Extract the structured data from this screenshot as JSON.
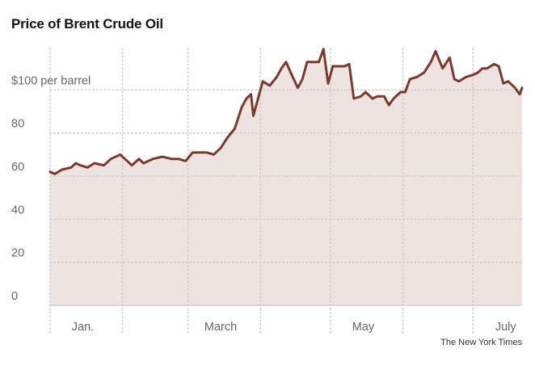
{
  "chart_data": {
    "type": "area",
    "title": "Price of Brent Crude Oil",
    "credit": "The New York Times",
    "xlabel": "",
    "ylabel": "",
    "ylim": [
      0,
      120
    ],
    "y_ticks": [
      {
        "value": 0,
        "label": "0"
      },
      {
        "value": 20,
        "label": "20"
      },
      {
        "value": 40,
        "label": "40"
      },
      {
        "value": 60,
        "label": "60"
      },
      {
        "value": 80,
        "label": "80"
      },
      {
        "value": 100,
        "label": "$100 per barrel"
      }
    ],
    "x_labels": [
      {
        "date": "2022-01-15",
        "label": "Jan."
      },
      {
        "date": "2022-03-15",
        "label": "March"
      },
      {
        "date": "2022-05-15",
        "label": "May"
      },
      {
        "date": "2022-07-15",
        "label": "July"
      }
    ],
    "x_gridlines": [
      "2022-01-01",
      "2022-02-01",
      "2022-03-01",
      "2022-04-01",
      "2022-05-01",
      "2022-06-01",
      "2022-07-01"
    ],
    "xlim": [
      "2022-01-01",
      "2022-07-22"
    ],
    "colors": {
      "line": "#7b3a2c",
      "fill": "#ede3e0",
      "grid": "#cfcfcf",
      "text": "#666666"
    },
    "series": [
      {
        "name": "",
        "points": [
          [
            "2022-01-01",
            62
          ],
          [
            "2022-01-03",
            61
          ],
          [
            "2022-01-06",
            63
          ],
          [
            "2022-01-10",
            64
          ],
          [
            "2022-01-12",
            66
          ],
          [
            "2022-01-14",
            65
          ],
          [
            "2022-01-17",
            64
          ],
          [
            "2022-01-20",
            66
          ],
          [
            "2022-01-24",
            65
          ],
          [
            "2022-01-27",
            68
          ],
          [
            "2022-01-31",
            70
          ],
          [
            "2022-02-03",
            67
          ],
          [
            "2022-02-05",
            65
          ],
          [
            "2022-02-08",
            68
          ],
          [
            "2022-02-10",
            66
          ],
          [
            "2022-02-14",
            68
          ],
          [
            "2022-02-18",
            69
          ],
          [
            "2022-02-22",
            68
          ],
          [
            "2022-02-25",
            68
          ],
          [
            "2022-02-28",
            67
          ],
          [
            "2022-03-03",
            71
          ],
          [
            "2022-03-06",
            71
          ],
          [
            "2022-03-09",
            71
          ],
          [
            "2022-03-12",
            70
          ],
          [
            "2022-03-15",
            73
          ],
          [
            "2022-03-18",
            78
          ],
          [
            "2022-03-21",
            82
          ],
          [
            "2022-03-24",
            92
          ],
          [
            "2022-03-26",
            96
          ],
          [
            "2022-03-28",
            98
          ],
          [
            "2022-03-29",
            88
          ],
          [
            "2022-03-31",
            96
          ],
          [
            "2022-04-02",
            104
          ],
          [
            "2022-04-05",
            102
          ],
          [
            "2022-04-08",
            106
          ],
          [
            "2022-04-10",
            110
          ],
          [
            "2022-04-12",
            113
          ],
          [
            "2022-04-14",
            108
          ],
          [
            "2022-04-17",
            101
          ],
          [
            "2022-04-19",
            105
          ],
          [
            "2022-04-21",
            113
          ],
          [
            "2022-04-24",
            113
          ],
          [
            "2022-04-26",
            113
          ],
          [
            "2022-04-28",
            119
          ],
          [
            "2022-04-30",
            103
          ],
          [
            "2022-05-02",
            111
          ],
          [
            "2022-05-04",
            111
          ],
          [
            "2022-05-07",
            111
          ],
          [
            "2022-05-09",
            112
          ],
          [
            "2022-05-11",
            96
          ],
          [
            "2022-05-14",
            97
          ],
          [
            "2022-05-16",
            99
          ],
          [
            "2022-05-19",
            96
          ],
          [
            "2022-05-21",
            97
          ],
          [
            "2022-05-24",
            97
          ],
          [
            "2022-05-26",
            93
          ],
          [
            "2022-05-28",
            96
          ],
          [
            "2022-05-31",
            99
          ],
          [
            "2022-06-02",
            99
          ],
          [
            "2022-06-04",
            105
          ],
          [
            "2022-06-07",
            106
          ],
          [
            "2022-06-10",
            108
          ],
          [
            "2022-06-13",
            113
          ],
          [
            "2022-06-15",
            118
          ],
          [
            "2022-06-18",
            110
          ],
          [
            "2022-06-21",
            115
          ],
          [
            "2022-06-23",
            105
          ],
          [
            "2022-06-25",
            104
          ],
          [
            "2022-06-28",
            106
          ],
          [
            "2022-07-01",
            107
          ],
          [
            "2022-07-03",
            108
          ],
          [
            "2022-07-05",
            110
          ],
          [
            "2022-07-07",
            110
          ],
          [
            "2022-07-10",
            112
          ],
          [
            "2022-07-12",
            111
          ],
          [
            "2022-07-14",
            103
          ],
          [
            "2022-07-16",
            104
          ],
          [
            "2022-07-19",
            101
          ],
          [
            "2022-07-21",
            98
          ],
          [
            "2022-07-22",
            101
          ]
        ]
      }
    ]
  }
}
